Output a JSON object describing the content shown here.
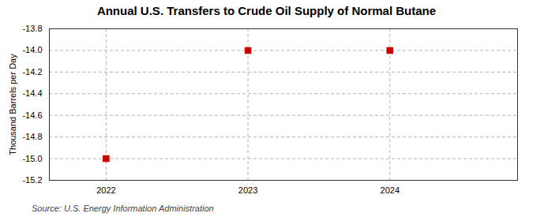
{
  "chart_data": {
    "type": "scatter",
    "title": "Annual U.S. Transfers to Crude Oil Supply of Normal Butane",
    "ylabel": "Thousand Barrels per Day",
    "x": [
      2022,
      2023,
      2024
    ],
    "values": [
      -15.0,
      -14.0,
      -14.0
    ],
    "color": "#cc0000",
    "marker": "square",
    "xlim": [
      2021.6,
      2024.9
    ],
    "xticks": [
      2022,
      2023,
      2024
    ],
    "ylim": [
      -15.2,
      -13.8
    ],
    "yticks": [
      -15.2,
      {
        "value": -15.0,
        "label": "-15.0"
      },
      -14.8,
      -14.6,
      -14.4,
      -14.2,
      {
        "value": -14.0,
        "label": "-14.0"
      },
      -13.8
    ],
    "grid": true,
    "annotations": [
      "Source: U.S. Energy Information Administration"
    ]
  }
}
